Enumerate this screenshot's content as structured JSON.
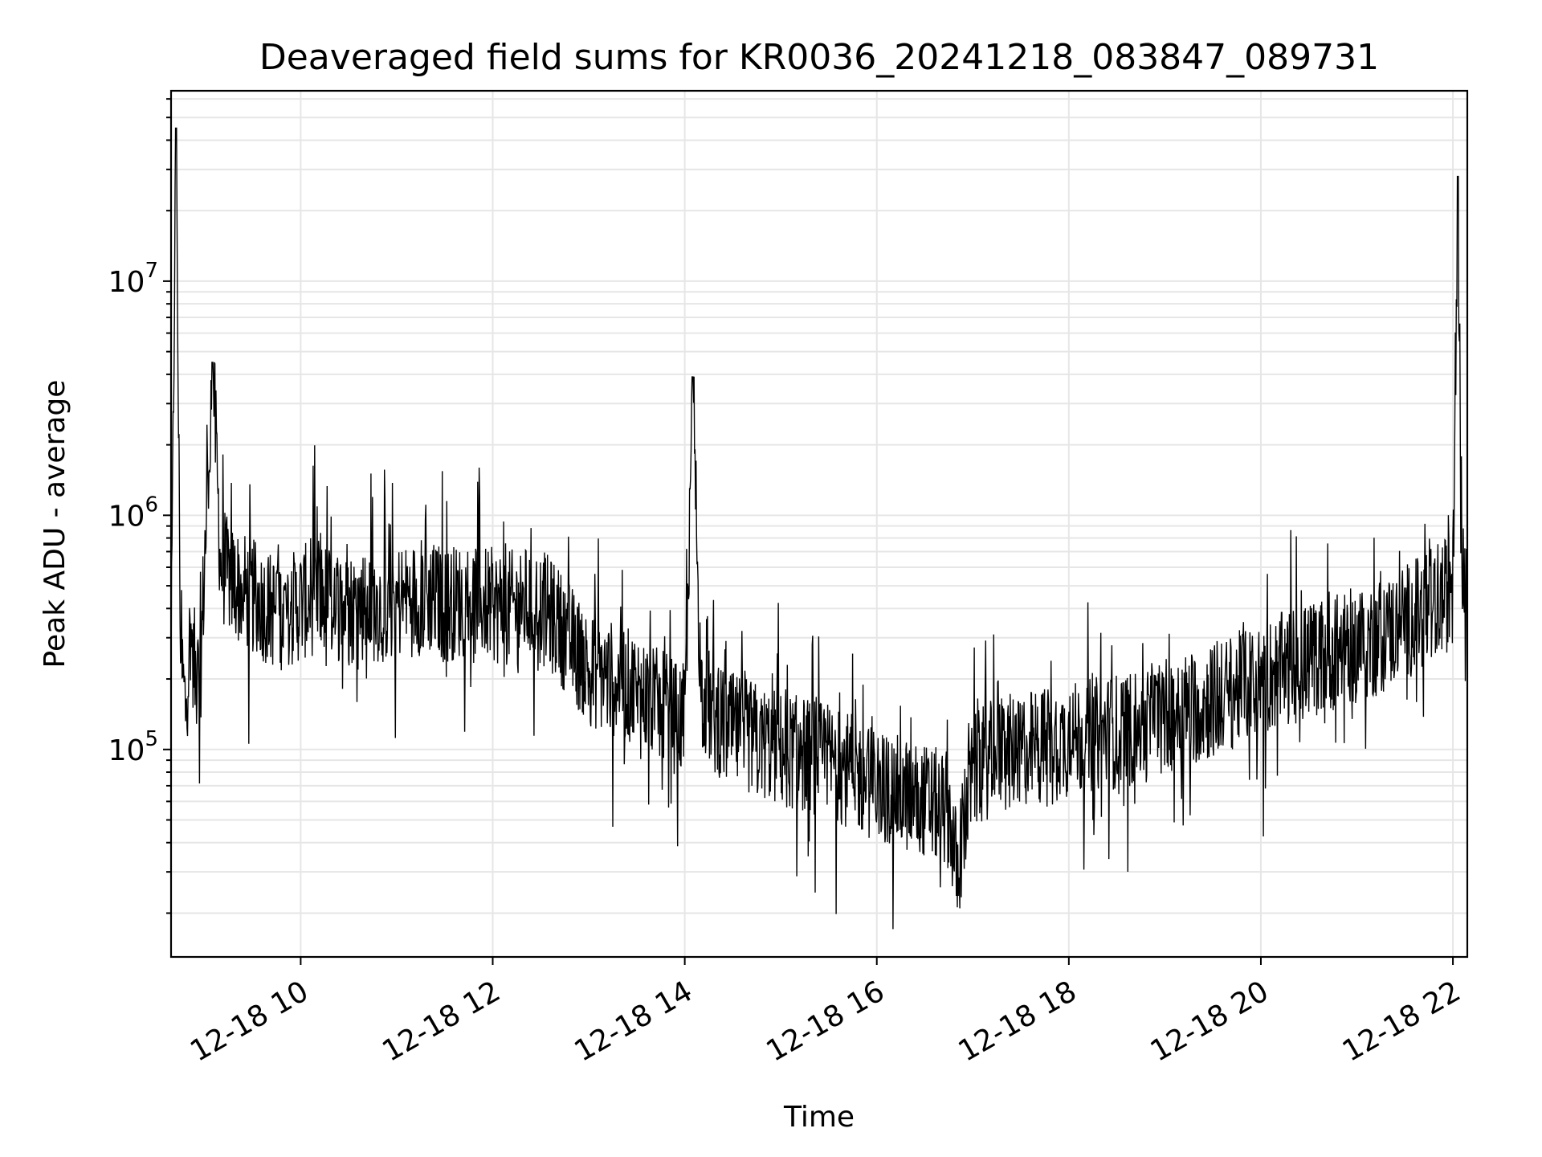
{
  "chart_data": {
    "type": "line",
    "title": "Deaveraged field sums for KR0036_20241218_083847_089731",
    "xlabel": "Time",
    "ylabel": "Peak ADU - average",
    "yscale": "log",
    "xlim": [
      "12-18 08:39",
      "12-18 22:09"
    ],
    "ylim": [
      13000,
      65000000
    ],
    "grid": true,
    "x_ticks": [
      {
        "value": "12-18 10:00",
        "label": "12-18 10"
      },
      {
        "value": "12-18 12:00",
        "label": "12-18 12"
      },
      {
        "value": "12-18 14:00",
        "label": "12-18 14"
      },
      {
        "value": "12-18 16:00",
        "label": "12-18 16"
      },
      {
        "value": "12-18 18:00",
        "label": "12-18 18"
      },
      {
        "value": "12-18 20:00",
        "label": "12-18 20"
      },
      {
        "value": "12-18 22:00",
        "label": "12-18 22"
      }
    ],
    "y_ticks": [
      {
        "value": 100000,
        "base": "10",
        "exp": "5"
      },
      {
        "value": 1000000,
        "base": "10",
        "exp": "6"
      },
      {
        "value": 10000000,
        "base": "10",
        "exp": "7"
      }
    ],
    "series": [
      {
        "color": "#000000",
        "x": [
          "12-18 08:39",
          "12-18 08:42",
          "12-18 08:45",
          "12-18 08:48",
          "12-18 08:51",
          "12-18 08:54",
          "12-18 08:57",
          "12-18 09:00",
          "12-18 09:05",
          "12-18 09:10",
          "12-18 09:15",
          "12-18 09:20",
          "12-18 09:30",
          "12-18 09:40",
          "12-18 09:50",
          "12-18 10:00",
          "12-18 10:10",
          "12-18 10:20",
          "12-18 10:30",
          "12-18 10:40",
          "12-18 10:50",
          "12-18 11:00",
          "12-18 11:10",
          "12-18 11:20",
          "12-18 11:30",
          "12-18 11:40",
          "12-18 11:50",
          "12-18 12:00",
          "12-18 12:10",
          "12-18 12:20",
          "12-18 12:30",
          "12-18 12:40",
          "12-18 12:50",
          "12-18 13:00",
          "12-18 13:15",
          "12-18 13:30",
          "12-18 13:45",
          "12-18 14:00",
          "12-18 14:05",
          "12-18 14:10",
          "12-18 14:20",
          "12-18 14:30",
          "12-18 14:45",
          "12-18 15:00",
          "12-18 15:15",
          "12-18 15:30",
          "12-18 15:45",
          "12-18 16:00",
          "12-18 16:15",
          "12-18 16:30",
          "12-18 16:45",
          "12-18 16:50",
          "12-18 17:00",
          "12-18 17:15",
          "12-18 17:30",
          "12-18 17:45",
          "12-18 18:00",
          "12-18 18:15",
          "12-18 18:30",
          "12-18 18:45",
          "12-18 19:00",
          "12-18 19:15",
          "12-18 19:30",
          "12-18 19:45",
          "12-18 20:00",
          "12-18 20:15",
          "12-18 20:30",
          "12-18 20:45",
          "12-18 21:00",
          "12-18 21:15",
          "12-18 21:30",
          "12-18 21:45",
          "12-18 22:00",
          "12-18 22:03",
          "12-18 22:06",
          "12-18 22:09"
        ],
        "y": [
          200000,
          45000000,
          250000,
          150000,
          300000,
          220000,
          180000,
          650000,
          4500000,
          600000,
          550000,
          500000,
          450000,
          400000,
          380000,
          420000,
          450000,
          430000,
          400000,
          420000,
          410000,
          430000,
          440000,
          450000,
          420000,
          430000,
          440000,
          410000,
          400000,
          420000,
          410000,
          350000,
          280000,
          220000,
          200000,
          180000,
          150000,
          130000,
          3900000,
          180000,
          130000,
          120000,
          110000,
          100000,
          95000,
          90000,
          80000,
          70000,
          65000,
          60000,
          55000,
          30000,
          80000,
          95000,
          100000,
          105000,
          110000,
          115000,
          120000,
          125000,
          140000,
          150000,
          160000,
          180000,
          200000,
          220000,
          240000,
          260000,
          280000,
          300000,
          350000,
          400000,
          480000,
          28000000,
          500000,
          600000
        ]
      }
    ]
  }
}
